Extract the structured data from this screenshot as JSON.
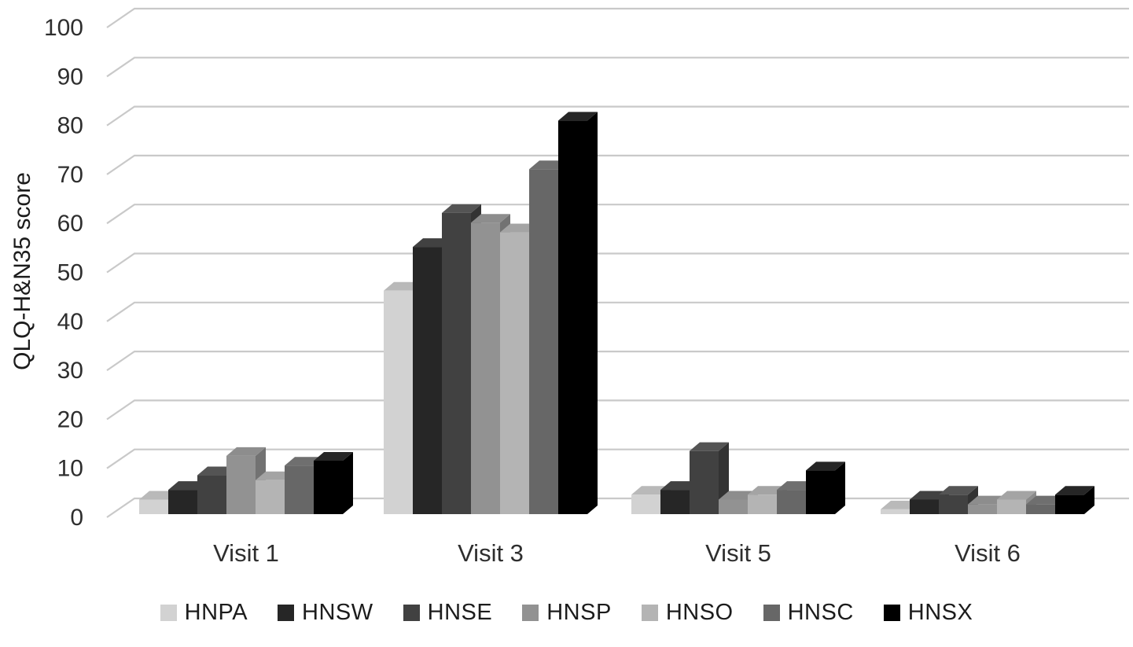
{
  "chart_data": {
    "type": "bar",
    "projection": "3d-clustered",
    "title": "",
    "xlabel": "",
    "ylabel": "QLQ-H&N35 score",
    "categories": [
      "Visit 1",
      "Visit 3",
      "Visit 5",
      "Visit 6"
    ],
    "series": [
      {
        "name": "HNPA",
        "color": "#d2d2d2",
        "values": [
          3,
          46,
          4,
          1
        ]
      },
      {
        "name": "HNSW",
        "color": "#262626",
        "values": [
          5,
          55,
          5,
          3
        ]
      },
      {
        "name": "HNSE",
        "color": "#414141",
        "values": [
          8,
          62,
          13,
          4
        ]
      },
      {
        "name": "HNSP",
        "color": "#929292",
        "values": [
          12,
          60,
          3,
          2
        ]
      },
      {
        "name": "HNSO",
        "color": "#b4b4b4",
        "values": [
          7,
          58,
          4,
          3
        ]
      },
      {
        "name": "HNSC",
        "color": "#676767",
        "values": [
          10,
          71,
          5,
          2
        ]
      },
      {
        "name": "HNSX",
        "color": "#000000",
        "values": [
          11,
          81,
          9,
          4
        ]
      }
    ],
    "ylim": [
      0,
      100
    ],
    "ytick_step": 10,
    "yticks": [
      "0",
      "10",
      "20",
      "30",
      "40",
      "50",
      "60",
      "70",
      "80",
      "90",
      "100"
    ],
    "grid": true,
    "gridline_color": "#c9c9c9",
    "text_color": "#2e2e2e",
    "legend_position": "bottom"
  }
}
